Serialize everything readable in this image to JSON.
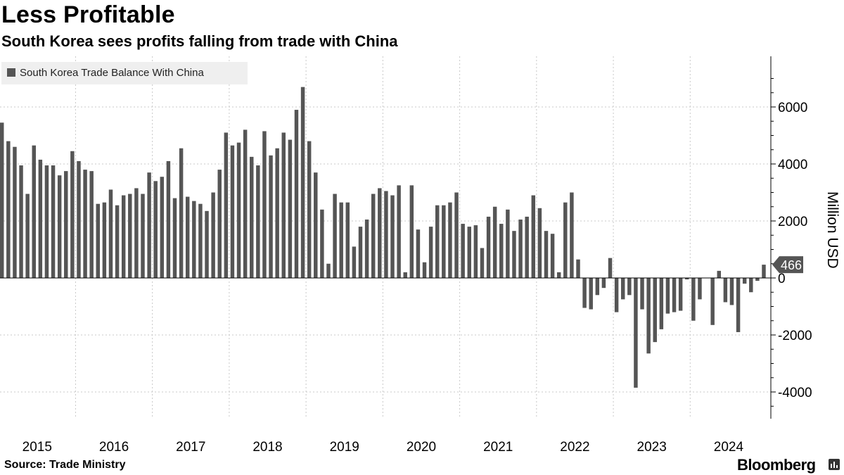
{
  "title": "Less Profitable",
  "subtitle": "South Korea sees profits falling from trade with China",
  "source": "Source: Trade Ministry",
  "brand": "Bloomberg",
  "colors": {
    "bar": "#555555",
    "grid": "#c8c8c8",
    "axis": "#000000",
    "legend_bg": "#efefef",
    "label_bg": "#555555",
    "label_text": "#ffffff"
  },
  "chart_data": {
    "type": "bar",
    "title": "Less Profitable",
    "ylabel": "Million USD",
    "xlabel": "",
    "ylim": [
      -4800,
      7800
    ],
    "yticks": [
      -4000,
      -2000,
      0,
      2000,
      4000,
      6000
    ],
    "grid": true,
    "legend": "top-left",
    "x_tick_labels": [
      "2015",
      "2016",
      "2017",
      "2018",
      "2019",
      "2020",
      "2021",
      "2022",
      "2023",
      "2024"
    ],
    "start": "2015-01",
    "last_value_label": "466",
    "series": [
      {
        "name": "South Korea Trade Balance With China",
        "values": [
          5450,
          4800,
          4600,
          3950,
          2950,
          4650,
          4150,
          3950,
          3950,
          3600,
          3750,
          4450,
          4100,
          3800,
          3750,
          2600,
          2650,
          3100,
          2550,
          2900,
          2950,
          3150,
          2950,
          3700,
          3400,
          3550,
          4100,
          2800,
          4550,
          2850,
          2700,
          2600,
          2350,
          3000,
          3800,
          5100,
          4650,
          4750,
          5200,
          4250,
          3950,
          5150,
          4300,
          4550,
          5100,
          4850,
          5900,
          6700,
          4800,
          3700,
          2400,
          500,
          2950,
          2650,
          2650,
          1100,
          1800,
          2050,
          2950,
          3150,
          3050,
          2900,
          3250,
          200,
          3250,
          1700,
          550,
          1800,
          2550,
          2550,
          2650,
          3000,
          1900,
          1800,
          1850,
          1050,
          2150,
          2500,
          1900,
          2400,
          1650,
          2050,
          2150,
          2900,
          2450,
          1650,
          1550,
          200,
          2650,
          3000,
          650,
          -1050,
          -1100,
          -600,
          -350,
          700,
          -1200,
          -750,
          -600,
          -3850,
          -1100,
          -2650,
          -2250,
          -1800,
          -1250,
          -1200,
          -1150,
          -50,
          -1500,
          -750,
          0,
          -1650,
          250,
          -850,
          -950,
          -1900,
          -200,
          -500,
          -100,
          466
        ]
      }
    ]
  }
}
